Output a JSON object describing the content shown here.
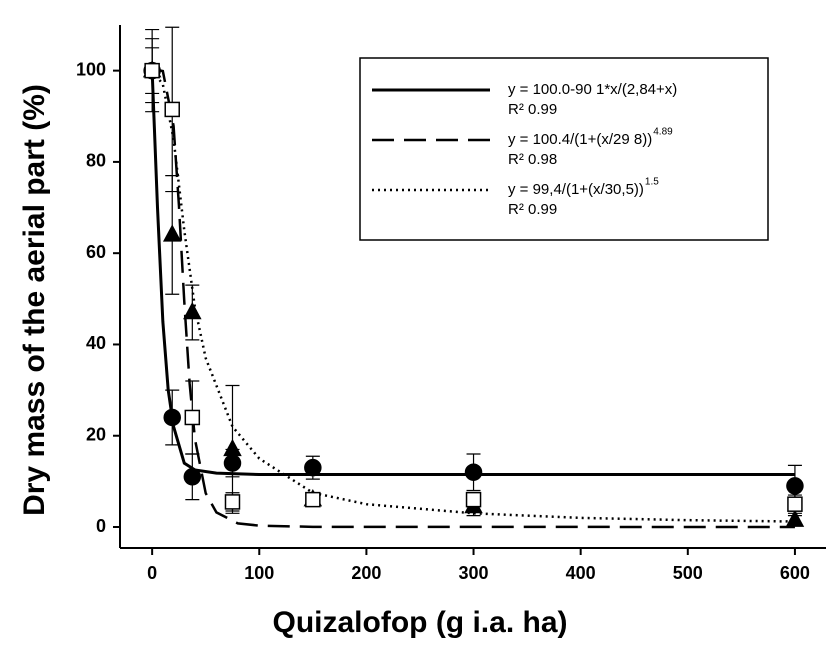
{
  "chart_data": {
    "type": "scatter",
    "x_label": "Quizalofop (g i.a. ha)",
    "y_label": "Dry mass of the aerial part (%)",
    "xlim": [
      -30,
      629
    ],
    "ylim": [
      -4.6,
      110
    ],
    "xticks": [
      0,
      100,
      200,
      300,
      400,
      500,
      600
    ],
    "yticks": [
      0,
      20,
      40,
      60,
      80,
      100
    ],
    "legend": "upper right",
    "series": [
      {
        "marker": "circle",
        "color": "#000000",
        "fill": "#000000",
        "x": [
          0,
          18.75,
          37.5,
          75,
          150,
          300,
          600
        ],
        "values": [
          100,
          24,
          11,
          14,
          13,
          12,
          9
        ],
        "errors": [
          5,
          6,
          5,
          3,
          2.5,
          4,
          4.5
        ]
      },
      {
        "marker": "triangle",
        "color": "#000000",
        "fill": "#000000",
        "x": [
          0,
          18.75,
          37.5,
          75,
          150,
          300,
          600
        ],
        "values": [
          100,
          64,
          47,
          17,
          6,
          4.5,
          1.5
        ],
        "errors": [
          9,
          13,
          6,
          14,
          1,
          2,
          1
        ]
      },
      {
        "marker": "square",
        "color": "#000000",
        "fill": "#ffffff",
        "x": [
          0,
          18.75,
          37.5,
          75,
          150,
          300,
          600
        ],
        "values": [
          100,
          91.5,
          24,
          5.5,
          6,
          6,
          5
        ],
        "errors": [
          7,
          18,
          8,
          2,
          1,
          1.5,
          2
        ]
      }
    ],
    "curves": [
      {
        "style": "solid",
        "color": "#000000",
        "x": [
          0,
          5,
          10,
          15,
          20,
          30,
          40,
          60,
          100,
          300,
          600
        ],
        "values": [
          100,
          70,
          45,
          30,
          22,
          14,
          12.5,
          11.8,
          11.5,
          11.5,
          11.5
        ],
        "equation": "y = 100.0-90 1*x/(2,84+x)",
        "r2": "R² 0.99"
      },
      {
        "style": "dashed",
        "color": "#000000",
        "x": [
          0,
          10,
          20,
          25,
          30,
          35,
          40,
          50,
          60,
          80,
          100,
          150,
          600
        ],
        "values": [
          100.4,
          99.9,
          87.9,
          70.5,
          49.4,
          31.4,
          19.2,
          7.4,
          3.2,
          0.8,
          0.3,
          0.04,
          0
        ],
        "equation": "y = 100.4/(1+(x/29 8))",
        "exponent": "4.89",
        "r2": "R² 0.98"
      },
      {
        "style": "dotted",
        "color": "#000000",
        "x": [
          0,
          10,
          20,
          30,
          40,
          50,
          75,
          100,
          150,
          200,
          300,
          400,
          500,
          600
        ],
        "values": [
          100,
          97,
          85,
          65,
          48,
          37,
          22,
          15,
          7.5,
          5,
          3,
          2,
          1.5,
          1.2
        ],
        "equation": "y = 99,4/(1+(x/30,5))",
        "exponent": "1.5",
        "r2": "R² 0.99"
      }
    ]
  }
}
